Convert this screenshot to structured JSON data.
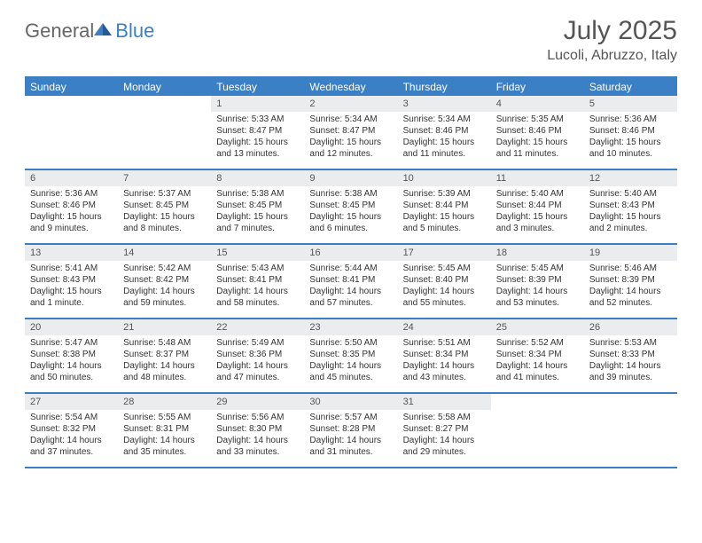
{
  "logo": {
    "general": "General",
    "blue": "Blue"
  },
  "title": "July 2025",
  "location": "Lucoli, Abruzzo, Italy",
  "day_headers": [
    "Sunday",
    "Monday",
    "Tuesday",
    "Wednesday",
    "Thursday",
    "Friday",
    "Saturday"
  ],
  "colors": {
    "accent": "#3b7fc4",
    "daynum_bg": "#eaeced",
    "text": "#333333",
    "title_text": "#555555"
  },
  "weeks": [
    [
      {
        "day": "",
        "sunrise": "",
        "sunset": "",
        "daylight": ""
      },
      {
        "day": "",
        "sunrise": "",
        "sunset": "",
        "daylight": ""
      },
      {
        "day": "1",
        "sunrise": "Sunrise: 5:33 AM",
        "sunset": "Sunset: 8:47 PM",
        "daylight": "Daylight: 15 hours and 13 minutes."
      },
      {
        "day": "2",
        "sunrise": "Sunrise: 5:34 AM",
        "sunset": "Sunset: 8:47 PM",
        "daylight": "Daylight: 15 hours and 12 minutes."
      },
      {
        "day": "3",
        "sunrise": "Sunrise: 5:34 AM",
        "sunset": "Sunset: 8:46 PM",
        "daylight": "Daylight: 15 hours and 11 minutes."
      },
      {
        "day": "4",
        "sunrise": "Sunrise: 5:35 AM",
        "sunset": "Sunset: 8:46 PM",
        "daylight": "Daylight: 15 hours and 11 minutes."
      },
      {
        "day": "5",
        "sunrise": "Sunrise: 5:36 AM",
        "sunset": "Sunset: 8:46 PM",
        "daylight": "Daylight: 15 hours and 10 minutes."
      }
    ],
    [
      {
        "day": "6",
        "sunrise": "Sunrise: 5:36 AM",
        "sunset": "Sunset: 8:46 PM",
        "daylight": "Daylight: 15 hours and 9 minutes."
      },
      {
        "day": "7",
        "sunrise": "Sunrise: 5:37 AM",
        "sunset": "Sunset: 8:45 PM",
        "daylight": "Daylight: 15 hours and 8 minutes."
      },
      {
        "day": "8",
        "sunrise": "Sunrise: 5:38 AM",
        "sunset": "Sunset: 8:45 PM",
        "daylight": "Daylight: 15 hours and 7 minutes."
      },
      {
        "day": "9",
        "sunrise": "Sunrise: 5:38 AM",
        "sunset": "Sunset: 8:45 PM",
        "daylight": "Daylight: 15 hours and 6 minutes."
      },
      {
        "day": "10",
        "sunrise": "Sunrise: 5:39 AM",
        "sunset": "Sunset: 8:44 PM",
        "daylight": "Daylight: 15 hours and 5 minutes."
      },
      {
        "day": "11",
        "sunrise": "Sunrise: 5:40 AM",
        "sunset": "Sunset: 8:44 PM",
        "daylight": "Daylight: 15 hours and 3 minutes."
      },
      {
        "day": "12",
        "sunrise": "Sunrise: 5:40 AM",
        "sunset": "Sunset: 8:43 PM",
        "daylight": "Daylight: 15 hours and 2 minutes."
      }
    ],
    [
      {
        "day": "13",
        "sunrise": "Sunrise: 5:41 AM",
        "sunset": "Sunset: 8:43 PM",
        "daylight": "Daylight: 15 hours and 1 minute."
      },
      {
        "day": "14",
        "sunrise": "Sunrise: 5:42 AM",
        "sunset": "Sunset: 8:42 PM",
        "daylight": "Daylight: 14 hours and 59 minutes."
      },
      {
        "day": "15",
        "sunrise": "Sunrise: 5:43 AM",
        "sunset": "Sunset: 8:41 PM",
        "daylight": "Daylight: 14 hours and 58 minutes."
      },
      {
        "day": "16",
        "sunrise": "Sunrise: 5:44 AM",
        "sunset": "Sunset: 8:41 PM",
        "daylight": "Daylight: 14 hours and 57 minutes."
      },
      {
        "day": "17",
        "sunrise": "Sunrise: 5:45 AM",
        "sunset": "Sunset: 8:40 PM",
        "daylight": "Daylight: 14 hours and 55 minutes."
      },
      {
        "day": "18",
        "sunrise": "Sunrise: 5:45 AM",
        "sunset": "Sunset: 8:39 PM",
        "daylight": "Daylight: 14 hours and 53 minutes."
      },
      {
        "day": "19",
        "sunrise": "Sunrise: 5:46 AM",
        "sunset": "Sunset: 8:39 PM",
        "daylight": "Daylight: 14 hours and 52 minutes."
      }
    ],
    [
      {
        "day": "20",
        "sunrise": "Sunrise: 5:47 AM",
        "sunset": "Sunset: 8:38 PM",
        "daylight": "Daylight: 14 hours and 50 minutes."
      },
      {
        "day": "21",
        "sunrise": "Sunrise: 5:48 AM",
        "sunset": "Sunset: 8:37 PM",
        "daylight": "Daylight: 14 hours and 48 minutes."
      },
      {
        "day": "22",
        "sunrise": "Sunrise: 5:49 AM",
        "sunset": "Sunset: 8:36 PM",
        "daylight": "Daylight: 14 hours and 47 minutes."
      },
      {
        "day": "23",
        "sunrise": "Sunrise: 5:50 AM",
        "sunset": "Sunset: 8:35 PM",
        "daylight": "Daylight: 14 hours and 45 minutes."
      },
      {
        "day": "24",
        "sunrise": "Sunrise: 5:51 AM",
        "sunset": "Sunset: 8:34 PM",
        "daylight": "Daylight: 14 hours and 43 minutes."
      },
      {
        "day": "25",
        "sunrise": "Sunrise: 5:52 AM",
        "sunset": "Sunset: 8:34 PM",
        "daylight": "Daylight: 14 hours and 41 minutes."
      },
      {
        "day": "26",
        "sunrise": "Sunrise: 5:53 AM",
        "sunset": "Sunset: 8:33 PM",
        "daylight": "Daylight: 14 hours and 39 minutes."
      }
    ],
    [
      {
        "day": "27",
        "sunrise": "Sunrise: 5:54 AM",
        "sunset": "Sunset: 8:32 PM",
        "daylight": "Daylight: 14 hours and 37 minutes."
      },
      {
        "day": "28",
        "sunrise": "Sunrise: 5:55 AM",
        "sunset": "Sunset: 8:31 PM",
        "daylight": "Daylight: 14 hours and 35 minutes."
      },
      {
        "day": "29",
        "sunrise": "Sunrise: 5:56 AM",
        "sunset": "Sunset: 8:30 PM",
        "daylight": "Daylight: 14 hours and 33 minutes."
      },
      {
        "day": "30",
        "sunrise": "Sunrise: 5:57 AM",
        "sunset": "Sunset: 8:28 PM",
        "daylight": "Daylight: 14 hours and 31 minutes."
      },
      {
        "day": "31",
        "sunrise": "Sunrise: 5:58 AM",
        "sunset": "Sunset: 8:27 PM",
        "daylight": "Daylight: 14 hours and 29 minutes."
      },
      {
        "day": "",
        "sunrise": "",
        "sunset": "",
        "daylight": ""
      },
      {
        "day": "",
        "sunrise": "",
        "sunset": "",
        "daylight": ""
      }
    ]
  ]
}
